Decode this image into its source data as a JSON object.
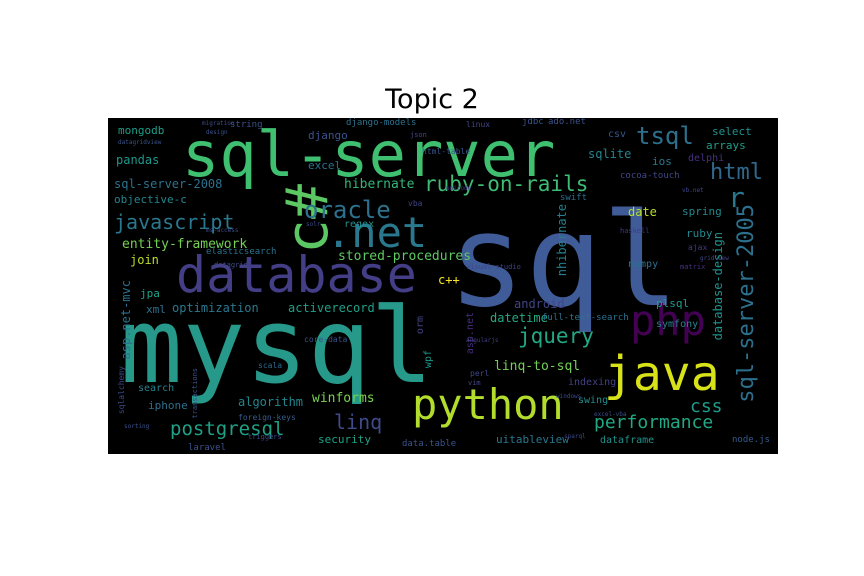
{
  "title": "Topic 2",
  "words": [
    {
      "text": "sql",
      "color": "#3f5c99"
    },
    {
      "text": "mysql",
      "color": "#26998a"
    },
    {
      "text": "sql-server",
      "color": "#3fbf70"
    },
    {
      "text": "database",
      "color": "#433e85"
    },
    {
      "text": "python",
      "color": "#b2dd2c"
    },
    {
      "text": "java",
      "color": "#d8e219"
    },
    {
      "text": "php",
      "color": "#440154"
    },
    {
      "text": "c#",
      "color": "#5cc863"
    },
    {
      "text": ".net",
      "color": "#2a788e"
    },
    {
      "text": "javascript",
      "color": "#2a788e"
    },
    {
      "text": "oracle",
      "color": "#2c728e"
    },
    {
      "text": "ruby-on-rails",
      "color": "#3fbc73"
    },
    {
      "text": "tsql",
      "color": "#2d708e"
    },
    {
      "text": "html",
      "color": "#31688e"
    },
    {
      "text": "sql-server-2005",
      "color": "#2d708e"
    },
    {
      "text": "jquery",
      "color": "#22a884"
    },
    {
      "text": "postgresql",
      "color": "#1fa187"
    },
    {
      "text": "performance",
      "color": "#22a884"
    },
    {
      "text": "linq",
      "color": "#3e4a89"
    },
    {
      "text": "css",
      "color": "#1e9b8a"
    },
    {
      "text": "r",
      "color": "#2a788e"
    },
    {
      "text": "mongodb",
      "color": "#1f9e89"
    },
    {
      "text": "string",
      "color": "#3b528b"
    },
    {
      "text": "django-models",
      "color": "#2c728e"
    },
    {
      "text": "linux",
      "color": "#414487"
    },
    {
      "text": "jdbc",
      "color": "#39568c"
    },
    {
      "text": "ado.net",
      "color": "#3b528b"
    },
    {
      "text": "csv",
      "color": "#38588c"
    },
    {
      "text": "select",
      "color": "#20928c"
    },
    {
      "text": "arrays",
      "color": "#1f9e89"
    },
    {
      "text": "django",
      "color": "#3b528b"
    },
    {
      "text": "pandas",
      "color": "#1f968b"
    },
    {
      "text": "excel",
      "color": "#2c728e"
    },
    {
      "text": "sqlite",
      "color": "#25848e"
    },
    {
      "text": "ios",
      "color": "#2a788e"
    },
    {
      "text": "delphi",
      "color": "#46327e"
    },
    {
      "text": "sql-server-2008",
      "color": "#2c728e"
    },
    {
      "text": "objective-c",
      "color": "#24868e"
    },
    {
      "text": "hibernate",
      "color": "#34b679"
    },
    {
      "text": "cocoa-touch",
      "color": "#404688"
    },
    {
      "text": "date",
      "color": "#b5de2b"
    },
    {
      "text": "spring",
      "color": "#23898e"
    },
    {
      "text": "entity-framework",
      "color": "#75d054"
    },
    {
      "text": "regex",
      "color": "#21918c"
    },
    {
      "text": "stored-procedures",
      "color": "#5ec962"
    },
    {
      "text": "nhibernate",
      "color": "#277f8e"
    },
    {
      "text": "elasticsearch",
      "color": "#2c728e"
    },
    {
      "text": "join",
      "color": "#bddf26"
    },
    {
      "text": "ruby",
      "color": "#24868e"
    },
    {
      "text": "numpy",
      "color": "#2d708e"
    },
    {
      "text": "c++",
      "color": "#fde725"
    },
    {
      "text": "database-design",
      "color": "#20928c"
    },
    {
      "text": "asp.net-mvc",
      "color": "#2d708e"
    },
    {
      "text": "jpa",
      "color": "#1fa188"
    },
    {
      "text": "optimization",
      "color": "#2a788e"
    },
    {
      "text": "activerecord",
      "color": "#1fa088"
    },
    {
      "text": "android",
      "color": "#414487"
    },
    {
      "text": "plsql",
      "color": "#1e9c89"
    },
    {
      "text": "xml",
      "color": "#2c728e"
    },
    {
      "text": "datetime",
      "color": "#23a983"
    },
    {
      "text": "orm",
      "color": "#414487"
    },
    {
      "text": "asp.net",
      "color": "#472d7b"
    },
    {
      "text": "wpf",
      "color": "#1f958b"
    },
    {
      "text": "linq-to-sql",
      "color": "#73d056"
    },
    {
      "text": "full-text-search",
      "color": "#2d708e"
    },
    {
      "text": "symfony",
      "color": "#26828e"
    },
    {
      "text": "core-data",
      "color": "#3b528b"
    },
    {
      "text": "scala",
      "color": "#31688e"
    },
    {
      "text": "indexing",
      "color": "#424186"
    },
    {
      "text": "iphone",
      "color": "#2e6f8e"
    },
    {
      "text": "algorithm",
      "color": "#25858e"
    },
    {
      "text": "winforms",
      "color": "#7ad151"
    },
    {
      "text": "swing",
      "color": "#218f8d"
    },
    {
      "text": "search",
      "color": "#25838e"
    },
    {
      "text": "sqlalchemy",
      "color": "#3e4989"
    },
    {
      "text": "security",
      "color": "#1fa187"
    },
    {
      "text": "uitableview",
      "color": "#2a788e"
    },
    {
      "text": "dataframe",
      "color": "#20928c"
    },
    {
      "text": "data.table",
      "color": "#3a548c"
    },
    {
      "text": "laravel",
      "color": "#3b528b"
    },
    {
      "text": "node.js",
      "color": "#365c8d"
    },
    {
      "text": "vba",
      "color": "#404588"
    },
    {
      "text": "swift",
      "color": "#2e6e8e"
    },
    {
      "text": "ajax",
      "color": "#453882"
    },
    {
      "text": "haskell",
      "color": "#443983"
    },
    {
      "text": "matrix",
      "color": "#46327e"
    },
    {
      "text": "datagrid",
      "color": "#3e4c8a"
    },
    {
      "text": "datagridview",
      "color": "#3b528b"
    },
    {
      "text": "html-table",
      "color": "#39558c"
    },
    {
      "text": "json",
      "color": "#3f4788"
    },
    {
      "text": "migration",
      "color": "#3e4c8a"
    },
    {
      "text": "design",
      "color": "#3b528b"
    },
    {
      "text": "vb.net",
      "color": "#3f4889"
    },
    {
      "text": "ms-access",
      "color": "#3d4e8a"
    },
    {
      "text": "solr",
      "color": "#3e4a89"
    },
    {
      "text": "gridview",
      "color": "#404688"
    },
    {
      "text": "visual-studio",
      "color": "#414487"
    },
    {
      "text": "unicode",
      "color": "#453781"
    },
    {
      "text": "angularjs",
      "color": "#433e85"
    },
    {
      "text": "transactions",
      "color": "#3b528b"
    },
    {
      "text": "foreign-keys",
      "color": "#365d8d"
    },
    {
      "text": "triggers",
      "color": "#3e4a89"
    },
    {
      "text": "sorting",
      "color": "#3b528b"
    },
    {
      "text": "vim",
      "color": "#404688"
    },
    {
      "text": "perl",
      "color": "#3f4788"
    },
    {
      "text": "windows",
      "color": "#3d4d8a"
    },
    {
      "text": "excel-vba",
      "color": "#3b518b"
    },
    {
      "text": "sparql",
      "color": "#3e4a89"
    }
  ]
}
